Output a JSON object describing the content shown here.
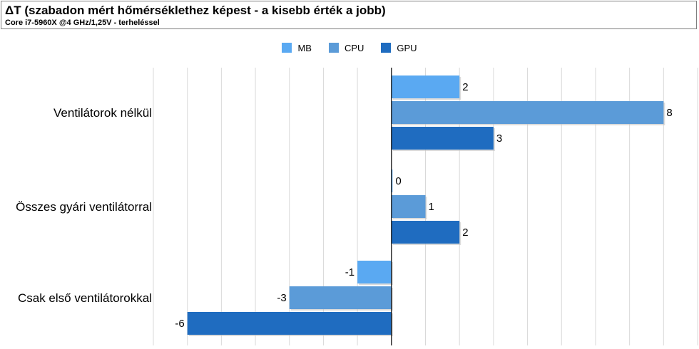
{
  "header": {
    "title": "ΔT (szabadon mért hőmérséklethez képest - a kisebb érték a jobb)",
    "subtitle": "Core i7-5960X @4 GHz/1,25V - terheléssel"
  },
  "chart_data": {
    "type": "bar",
    "orientation": "horizontal",
    "categories": [
      "Ventilátorok nélkül",
      "Összes gyári ventilátorral",
      "Csak első ventilátorokkal"
    ],
    "series": [
      {
        "name": "MB",
        "color": "#5aa9f2",
        "values": [
          2,
          0,
          -1
        ]
      },
      {
        "name": "CPU",
        "color": "#5b9bd8",
        "values": [
          8,
          1,
          -3
        ]
      },
      {
        "name": "GPU",
        "color": "#1f6cc0",
        "values": [
          3,
          2,
          -6
        ]
      }
    ],
    "xlim": [
      -7,
      9
    ],
    "grid": true,
    "legend_position": "top-center"
  }
}
